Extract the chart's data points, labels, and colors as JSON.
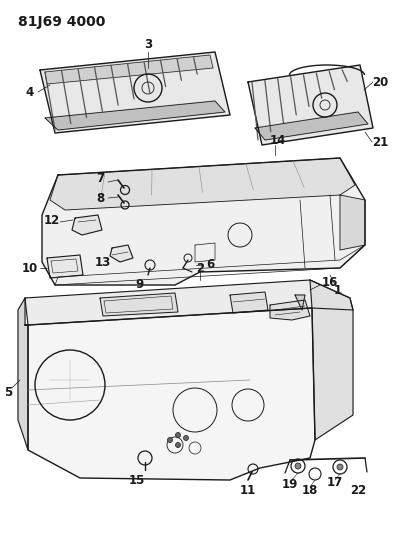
{
  "title": "81J69 4000",
  "bg_color": "#ffffff",
  "line_color": "#1a1a1a",
  "title_fontsize": 10,
  "label_fontsize": 8.5,
  "figsize": [
    4.13,
    5.33
  ],
  "dpi": 100
}
